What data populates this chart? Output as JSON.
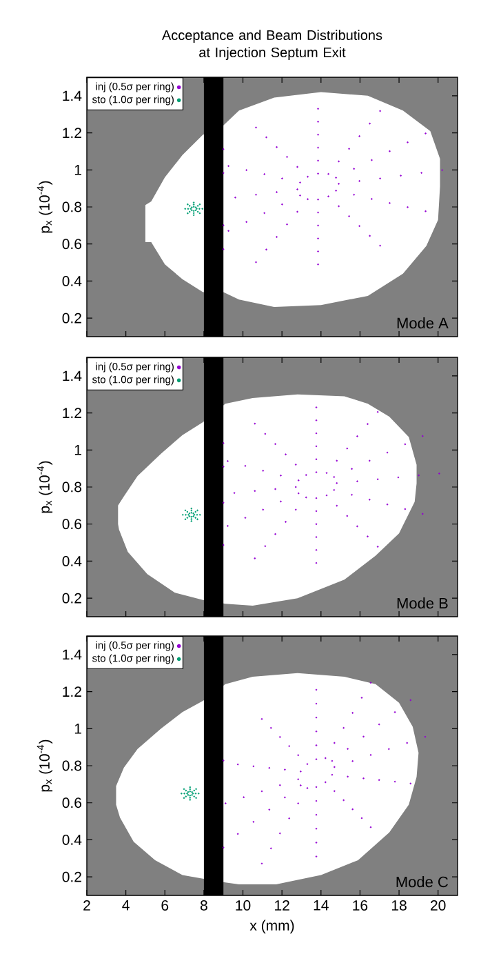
{
  "chart_data": [
    {
      "type": "scatter",
      "title": "Acceptance and Beam Distributions at Injection Septum Exit",
      "ylabel": "p$_{x}$ (10$^{-4}$)",
      "xlim": [
        2,
        21
      ],
      "ylim": [
        0.1,
        1.5
      ],
      "xticks": [
        2,
        4,
        6,
        8,
        10,
        12,
        14,
        16,
        18,
        20
      ],
      "yticks": [
        0.2,
        0.4,
        0.6,
        0.8,
        1,
        1.2,
        1.4
      ],
      "tick_labels": "y",
      "legend": "top left",
      "annotations": [
        "Mode A"
      ],
      "bands": [
        {
          "axis": "x",
          "from": 8,
          "to": 9,
          "color": "#000000"
        }
      ],
      "series": [
        {
          "type": "area",
          "color": "#ffffff",
          "x": [
            5.0,
            5.0,
            5.3,
            6.0,
            6.9,
            7.95,
            9.0,
            9.8,
            11.6,
            14.0,
            16.4,
            18.2,
            19.6,
            20.1,
            20.1,
            20.0,
            19.4,
            18.2,
            16.4,
            14.0,
            11.6,
            9.8,
            9.0,
            7.95,
            6.9,
            6.0,
            5.3
          ],
          "values": [
            0.61,
            0.81,
            0.83,
            0.96,
            1.08,
            1.19,
            1.24,
            1.32,
            1.39,
            1.42,
            1.4,
            1.32,
            1.21,
            1.06,
            0.91,
            0.73,
            0.59,
            0.44,
            0.32,
            0.27,
            0.26,
            0.3,
            0.34,
            0.34,
            0.41,
            0.49,
            0.61
          ]
        },
        {
          "name": "inj (0.5σ per ring)",
          "color": "#9400d3",
          "x": [
            14.91,
            14.77,
            14.38,
            13.85,
            13.32,
            12.93,
            12.79,
            12.93,
            13.32,
            13.85,
            14.38,
            14.77,
            15.97,
            15.69,
            14.91,
            13.85,
            12.79,
            12.01,
            11.73,
            12.01,
            12.79,
            13.85,
            14.91,
            15.69,
            17.03,
            16.6,
            15.44,
            13.85,
            12.26,
            11.1,
            10.67,
            11.1,
            12.26,
            13.85,
            15.44,
            16.6,
            18.09,
            17.52,
            15.97,
            13.85,
            11.73,
            10.18,
            9.61,
            10.18,
            11.73,
            13.85,
            15.97,
            17.52,
            9.0,
            9.26,
            11.2,
            13.85,
            16.5,
            18.44,
            19.15,
            18.44,
            16.5,
            13.85,
            11.2,
            9.26,
            9.0,
            9.0,
            10.67,
            13.85,
            17.03,
            19.36,
            20.21,
            19.36,
            17.03,
            13.85,
            10.67,
            9.0
          ],
          "values": [
            0.925,
            0.958,
            0.978,
            0.98,
            0.963,
            0.932,
            0.895,
            0.862,
            0.842,
            0.84,
            0.857,
            0.888,
            0.94,
            1.006,
            1.046,
            1.05,
            1.016,
            0.954,
            0.88,
            0.814,
            0.774,
            0.77,
            0.804,
            0.866,
            0.954,
            1.053,
            1.114,
            1.12,
            1.07,
            0.977,
            0.866,
            0.767,
            0.706,
            0.7,
            0.75,
            0.843,
            0.969,
            1.101,
            1.182,
            1.19,
            1.123,
            0.999,
            0.851,
            0.719,
            0.638,
            0.63,
            0.697,
            0.821,
            0.701,
            0.671,
            0.57,
            0.56,
            0.644,
            0.799,
            0.984,
            1.149,
            1.25,
            1.26,
            1.176,
            1.021,
            0.983,
            0.572,
            0.502,
            0.49,
            0.591,
            0.777,
            0.999,
            1.197,
            1.318,
            1.33,
            1.229,
            1.112
          ]
        },
        {
          "name": "sto (1.0σ per ring)",
          "color": "#009e73",
          "x": [
            7.63,
            7.58,
            7.48,
            7.38,
            7.33,
            7.38,
            7.48,
            7.58,
            7.77,
            7.69,
            7.48,
            7.27,
            7.19,
            7.27,
            7.48,
            7.69,
            7.92,
            7.79,
            7.48,
            7.17,
            7.04,
            7.17,
            7.48,
            7.79
          ],
          "values": [
            0.79,
            0.798,
            0.801,
            0.798,
            0.79,
            0.782,
            0.779,
            0.782,
            0.79,
            0.806,
            0.813,
            0.806,
            0.79,
            0.774,
            0.767,
            0.774,
            0.79,
            0.814,
            0.824,
            0.814,
            0.79,
            0.766,
            0.756,
            0.766
          ]
        }
      ]
    },
    {
      "type": "scatter",
      "ylabel": "p$_{x}$ (10$^{-4}$)",
      "xlim": [
        2,
        21
      ],
      "ylim": [
        0.1,
        1.5
      ],
      "xticks": [
        2,
        4,
        6,
        8,
        10,
        12,
        14,
        16,
        18,
        20
      ],
      "yticks": [
        0.2,
        0.4,
        0.6,
        0.8,
        1,
        1.2,
        1.4
      ],
      "tick_labels": "y",
      "legend": "top left",
      "annotations": [
        "Mode B"
      ],
      "bands": [
        {
          "axis": "x",
          "from": 8,
          "to": 9,
          "color": "#000000"
        }
      ],
      "series": [
        {
          "type": "area",
          "color": "#ffffff",
          "x": [
            3.6,
            3.6,
            3.9,
            4.6,
            5.8,
            6.9,
            7.95,
            9.1,
            10.5,
            12.8,
            15.2,
            16.4,
            17.5,
            18.5,
            18.9,
            18.9,
            18.8,
            18.0,
            16.8,
            15.2,
            12.8,
            10.5,
            9.1,
            7.95,
            6.5,
            5.1,
            4.1,
            3.65
          ],
          "values": [
            0.6,
            0.7,
            0.75,
            0.86,
            0.98,
            1.08,
            1.15,
            1.25,
            1.28,
            1.3,
            1.29,
            1.25,
            1.18,
            1.07,
            0.92,
            0.82,
            0.72,
            0.55,
            0.43,
            0.3,
            0.2,
            0.16,
            0.17,
            0.19,
            0.23,
            0.33,
            0.45,
            0.57
          ]
        },
        {
          "name": "inj (0.5σ per ring)",
          "color": "#9400d3",
          "x": [
            14.81,
            14.67,
            14.29,
            13.76,
            13.24,
            12.85,
            12.71,
            12.85,
            13.24,
            13.76,
            14.29,
            14.67,
            15.86,
            15.58,
            14.81,
            13.76,
            12.71,
            11.94,
            11.66,
            11.94,
            12.71,
            13.76,
            14.81,
            15.58,
            16.91,
            16.49,
            15.34,
            13.76,
            12.19,
            11.03,
            10.61,
            11.03,
            12.19,
            13.76,
            15.34,
            16.49,
            17.96,
            17.4,
            15.86,
            13.76,
            11.66,
            10.12,
            9.56,
            10.12,
            11.66,
            13.76,
            15.86,
            17.4,
            9.0,
            9.22,
            11.14,
            13.76,
            16.39,
            18.31,
            19.01,
            18.31,
            16.39,
            13.76,
            11.14,
            9.22,
            9.0,
            9.0,
            10.61,
            13.76,
            16.91,
            19.21,
            20.06,
            19.21,
            16.91,
            13.76,
            10.61,
            9.0
          ],
          "values": [
            0.821,
            0.854,
            0.876,
            0.88,
            0.865,
            0.836,
            0.8,
            0.766,
            0.744,
            0.74,
            0.755,
            0.784,
            0.831,
            0.898,
            0.942,
            0.95,
            0.921,
            0.862,
            0.789,
            0.722,
            0.678,
            0.67,
            0.699,
            0.758,
            0.842,
            0.942,
            1.008,
            1.02,
            0.976,
            0.888,
            0.779,
            0.678,
            0.612,
            0.6,
            0.644,
            0.732,
            0.852,
            0.986,
            1.074,
            1.09,
            1.032,
            0.914,
            0.768,
            0.634,
            0.546,
            0.53,
            0.588,
            0.706,
            0.715,
            0.59,
            0.481,
            0.46,
            0.533,
            0.681,
            0.863,
            1.031,
            1.14,
            1.16,
            1.087,
            0.94,
            0.91,
            0.487,
            0.415,
            0.39,
            0.478,
            0.655,
            0.873,
            1.075,
            1.205,
            1.23,
            1.142,
            1.037
          ]
        },
        {
          "name": "sto (1.0σ per ring)",
          "color": "#009e73",
          "x": [
            7.51,
            7.46,
            7.36,
            7.26,
            7.21,
            7.26,
            7.36,
            7.46,
            7.65,
            7.57,
            7.36,
            7.15,
            7.07,
            7.15,
            7.36,
            7.57,
            7.8,
            7.67,
            7.36,
            7.05,
            6.92,
            7.05,
            7.36,
            7.67
          ],
          "values": [
            0.65,
            0.658,
            0.661,
            0.658,
            0.65,
            0.642,
            0.639,
            0.642,
            0.65,
            0.666,
            0.673,
            0.666,
            0.65,
            0.634,
            0.627,
            0.634,
            0.65,
            0.674,
            0.684,
            0.674,
            0.65,
            0.626,
            0.616,
            0.626
          ]
        }
      ]
    },
    {
      "type": "scatter",
      "xlabel": "x (mm)",
      "ylabel": "p$_{x}$ (10$^{-4}$)",
      "xlim": [
        2,
        21
      ],
      "ylim": [
        0.1,
        1.5
      ],
      "xticks": [
        2,
        4,
        6,
        8,
        10,
        12,
        14,
        16,
        18,
        20
      ],
      "yticks": [
        0.2,
        0.4,
        0.6,
        0.8,
        1,
        1.2,
        1.4
      ],
      "legend": "top left",
      "annotations": [
        "Mode C"
      ],
      "bands": [
        {
          "axis": "x",
          "from": 8,
          "to": 9,
          "color": "#000000"
        }
      ],
      "series": [
        {
          "type": "area",
          "color": "#ffffff",
          "x": [
            3.5,
            3.5,
            3.9,
            4.6,
            5.8,
            6.9,
            7.95,
            9.1,
            10.5,
            12.8,
            15.2,
            16.8,
            18.0,
            18.7,
            19.0,
            18.9,
            18.5,
            17.5,
            15.9,
            14.0,
            11.7,
            9.8,
            9.1,
            7.95,
            6.9,
            5.5,
            4.4,
            3.7
          ],
          "values": [
            0.59,
            0.69,
            0.79,
            0.89,
            1.0,
            1.09,
            1.15,
            1.24,
            1.28,
            1.3,
            1.28,
            1.24,
            1.14,
            1.01,
            0.87,
            0.74,
            0.59,
            0.44,
            0.29,
            0.21,
            0.16,
            0.16,
            0.17,
            0.19,
            0.21,
            0.29,
            0.39,
            0.52
          ]
        },
        {
          "name": "inj (0.5σ per ring)",
          "color": "#9400d3",
          "x": [
            14.69,
            14.57,
            14.23,
            13.76,
            13.3,
            12.96,
            12.83,
            12.96,
            13.3,
            13.76,
            14.23,
            14.57,
            15.62,
            15.37,
            14.69,
            13.76,
            12.83,
            12.15,
            11.9,
            12.15,
            12.83,
            13.76,
            14.69,
            15.37,
            16.55,
            16.18,
            15.16,
            13.76,
            12.37,
            11.35,
            10.97,
            11.35,
            12.37,
            13.76,
            15.16,
            16.18,
            17.48,
            16.98,
            15.62,
            13.76,
            11.9,
            10.54,
            10.04,
            10.54,
            11.9,
            13.76,
            15.62,
            16.98,
            18.41,
            17.79,
            16.09,
            13.76,
            11.44,
            9.74,
            9.11,
            9.74,
            11.44,
            13.76,
            16.09,
            17.79,
            9.0,
            10.97,
            13.76,
            16.55,
            18.59,
            19.34,
            18.59,
            16.55,
            13.76,
            10.97,
            9.0
          ],
          "values": [
            0.793,
            0.826,
            0.841,
            0.835,
            0.809,
            0.769,
            0.727,
            0.694,
            0.679,
            0.685,
            0.711,
            0.751,
            0.825,
            0.891,
            0.923,
            0.91,
            0.857,
            0.779,
            0.695,
            0.629,
            0.597,
            0.61,
            0.663,
            0.741,
            0.858,
            0.957,
            1.004,
            0.985,
            0.906,
            0.788,
            0.662,
            0.563,
            0.516,
            0.535,
            0.614,
            0.732,
            0.89,
            1.023,
            1.085,
            1.06,
            0.955,
            0.797,
            0.63,
            0.497,
            0.435,
            0.46,
            0.565,
            0.723,
            0.923,
            1.089,
            1.167,
            1.135,
            1.004,
            0.807,
            0.597,
            0.432,
            0.354,
            0.385,
            0.517,
            0.714,
            0.358,
            0.272,
            0.31,
            0.468,
            0.704,
            0.956,
            1.154,
            1.248,
            1.21,
            1.052,
            0.828
          ]
        },
        {
          "name": "sto (1.0σ per ring)",
          "color": "#009e73",
          "x": [
            7.44,
            7.39,
            7.29,
            7.19,
            7.14,
            7.19,
            7.29,
            7.39,
            7.58,
            7.5,
            7.29,
            7.08,
            7.0,
            7.08,
            7.29,
            7.5,
            7.73,
            7.6,
            7.29,
            6.98,
            6.85,
            6.98,
            7.29,
            7.6
          ],
          "values": [
            0.65,
            0.658,
            0.661,
            0.658,
            0.65,
            0.642,
            0.639,
            0.642,
            0.65,
            0.666,
            0.673,
            0.666,
            0.65,
            0.634,
            0.627,
            0.634,
            0.65,
            0.674,
            0.684,
            0.674,
            0.65,
            0.626,
            0.616,
            0.626
          ]
        }
      ]
    }
  ]
}
